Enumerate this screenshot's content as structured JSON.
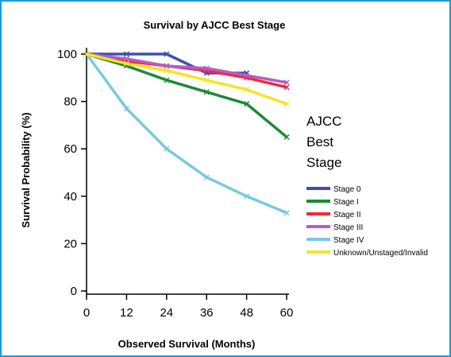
{
  "chart_data": {
    "type": "line",
    "title": "Survival by AJCC Best Stage",
    "xlabel": "Observed Survival (Months)",
    "ylabel": "Survival Probability (%)",
    "x": [
      0,
      12,
      24,
      36,
      48,
      60
    ],
    "xticks": [
      "0",
      "12",
      "24",
      "36",
      "48",
      "60"
    ],
    "yticks": [
      "0",
      "20",
      "40",
      "60",
      "80",
      "100"
    ],
    "xlim": [
      0,
      60
    ],
    "ylim": [
      0,
      100
    ],
    "grid": false,
    "legend": {
      "title_lines": [
        "AJCC",
        "Best",
        "Stage"
      ],
      "placement": "right"
    },
    "series": [
      {
        "name": "Stage 0",
        "color": "#3b4fb5",
        "values": [
          100,
          100,
          100,
          92,
          92,
          null
        ]
      },
      {
        "name": "Stage I",
        "color": "#1c8a36",
        "values": [
          100,
          95,
          89,
          84,
          79,
          65
        ]
      },
      {
        "name": "Stage II",
        "color": "#ee2a3a",
        "values": [
          100,
          97,
          95,
          93,
          90,
          86
        ]
      },
      {
        "name": "Stage III",
        "color": "#b85cc2",
        "values": [
          100,
          98,
          95,
          94,
          91,
          88
        ]
      },
      {
        "name": "Stage IV",
        "color": "#79c9df",
        "values": [
          100,
          77,
          60,
          48,
          40,
          33
        ]
      },
      {
        "name": "Unknown/Unstaged/Invalid",
        "color": "#f4e526",
        "values": [
          100,
          96,
          93,
          89,
          85,
          79
        ]
      }
    ]
  }
}
